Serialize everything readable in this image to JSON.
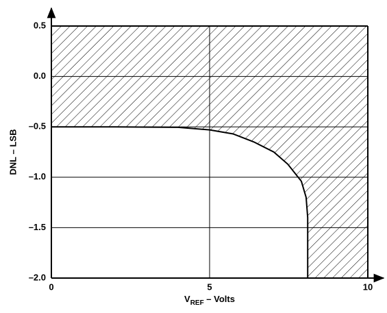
{
  "chart_data": {
    "type": "line",
    "xlabel": [
      "V",
      "REF",
      " – Volts"
    ],
    "ylabel": "DNL – LSB",
    "x": [
      0,
      2,
      4,
      5,
      5.74,
      6.4,
      7.03,
      7.47,
      7.9,
      8.05,
      8.1,
      8.1
    ],
    "series": [
      {
        "color": "#000000",
        "values": [
          -0.5,
          -0.5,
          -0.505,
          -0.53,
          -0.57,
          -0.65,
          -0.75,
          -0.87,
          -1.04,
          -1.2,
          -1.4,
          -2.0
        ]
      }
    ],
    "hatch": true,
    "xlim": [
      0,
      10
    ],
    "ylim": [
      -2.0,
      0.5
    ],
    "xticks": [
      0,
      5,
      10
    ],
    "yticks": [
      {
        "value": -2.0,
        "label": "–2.0"
      },
      {
        "value": -1.5,
        "label": "–1.5"
      },
      {
        "value": -1.0,
        "label": "–1.0"
      },
      {
        "value": -0.5,
        "label": "–0.5"
      },
      {
        "value": 0,
        "label": "0.0"
      },
      {
        "value": 0.5,
        "label": "0.5"
      }
    ],
    "grid": true
  }
}
